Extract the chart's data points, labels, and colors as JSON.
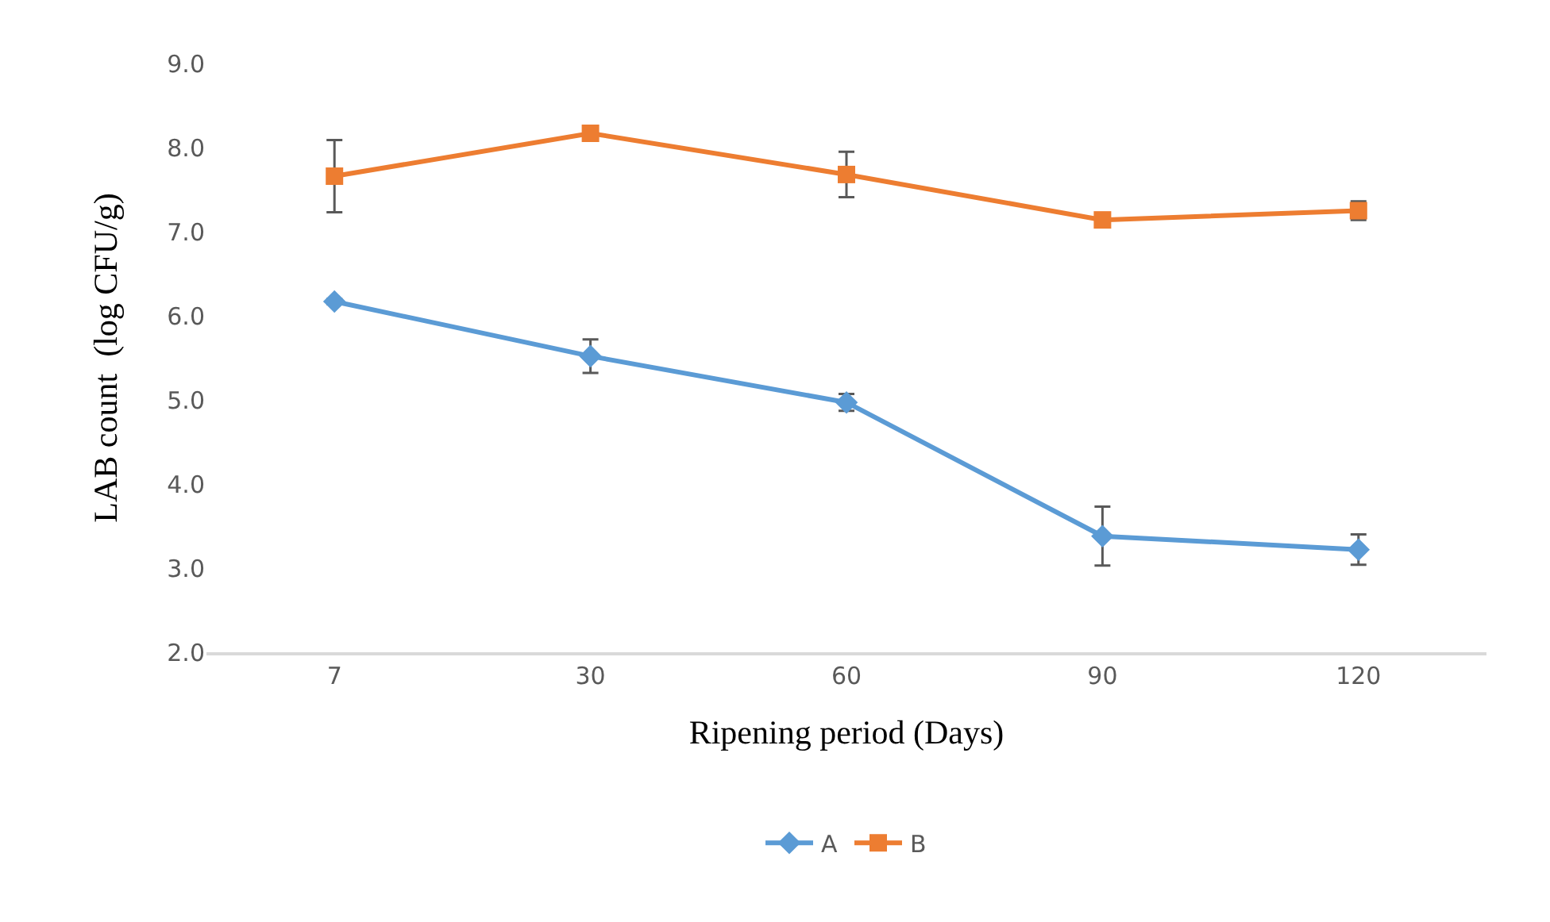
{
  "chart_data": {
    "type": "line",
    "xlabel": "Ripening period (Days)",
    "ylabel": "LAB count  (log CFU/g)",
    "categories": [
      "7",
      "30",
      "60",
      "90",
      "120"
    ],
    "series": [
      {
        "name": "A",
        "color": "#5b9bd5",
        "marker": "diamond",
        "values": [
          6.17,
          5.52,
          4.97,
          3.38,
          3.22
        ],
        "errors": [
          0.03,
          0.2,
          0.1,
          0.35,
          0.18
        ]
      },
      {
        "name": "B",
        "color": "#ed7d31",
        "marker": "square",
        "values": [
          7.66,
          8.17,
          7.68,
          7.14,
          7.25
        ],
        "errors": [
          0.43,
          0.04,
          0.27,
          0.03,
          0.11
        ]
      }
    ],
    "ylim": [
      2,
      9
    ],
    "yticks": [
      {
        "value": 2,
        "label": "2.0"
      },
      {
        "value": 3,
        "label": "3.0"
      },
      {
        "value": 4,
        "label": "4.0"
      },
      {
        "value": 5,
        "label": "5.0"
      },
      {
        "value": 6,
        "label": "6.0"
      },
      {
        "value": 7,
        "label": "7.0"
      },
      {
        "value": 8,
        "label": "8.0"
      },
      {
        "value": 9,
        "label": "9.0"
      }
    ],
    "grid": false,
    "legend": "bottom",
    "line_style": "solid"
  }
}
